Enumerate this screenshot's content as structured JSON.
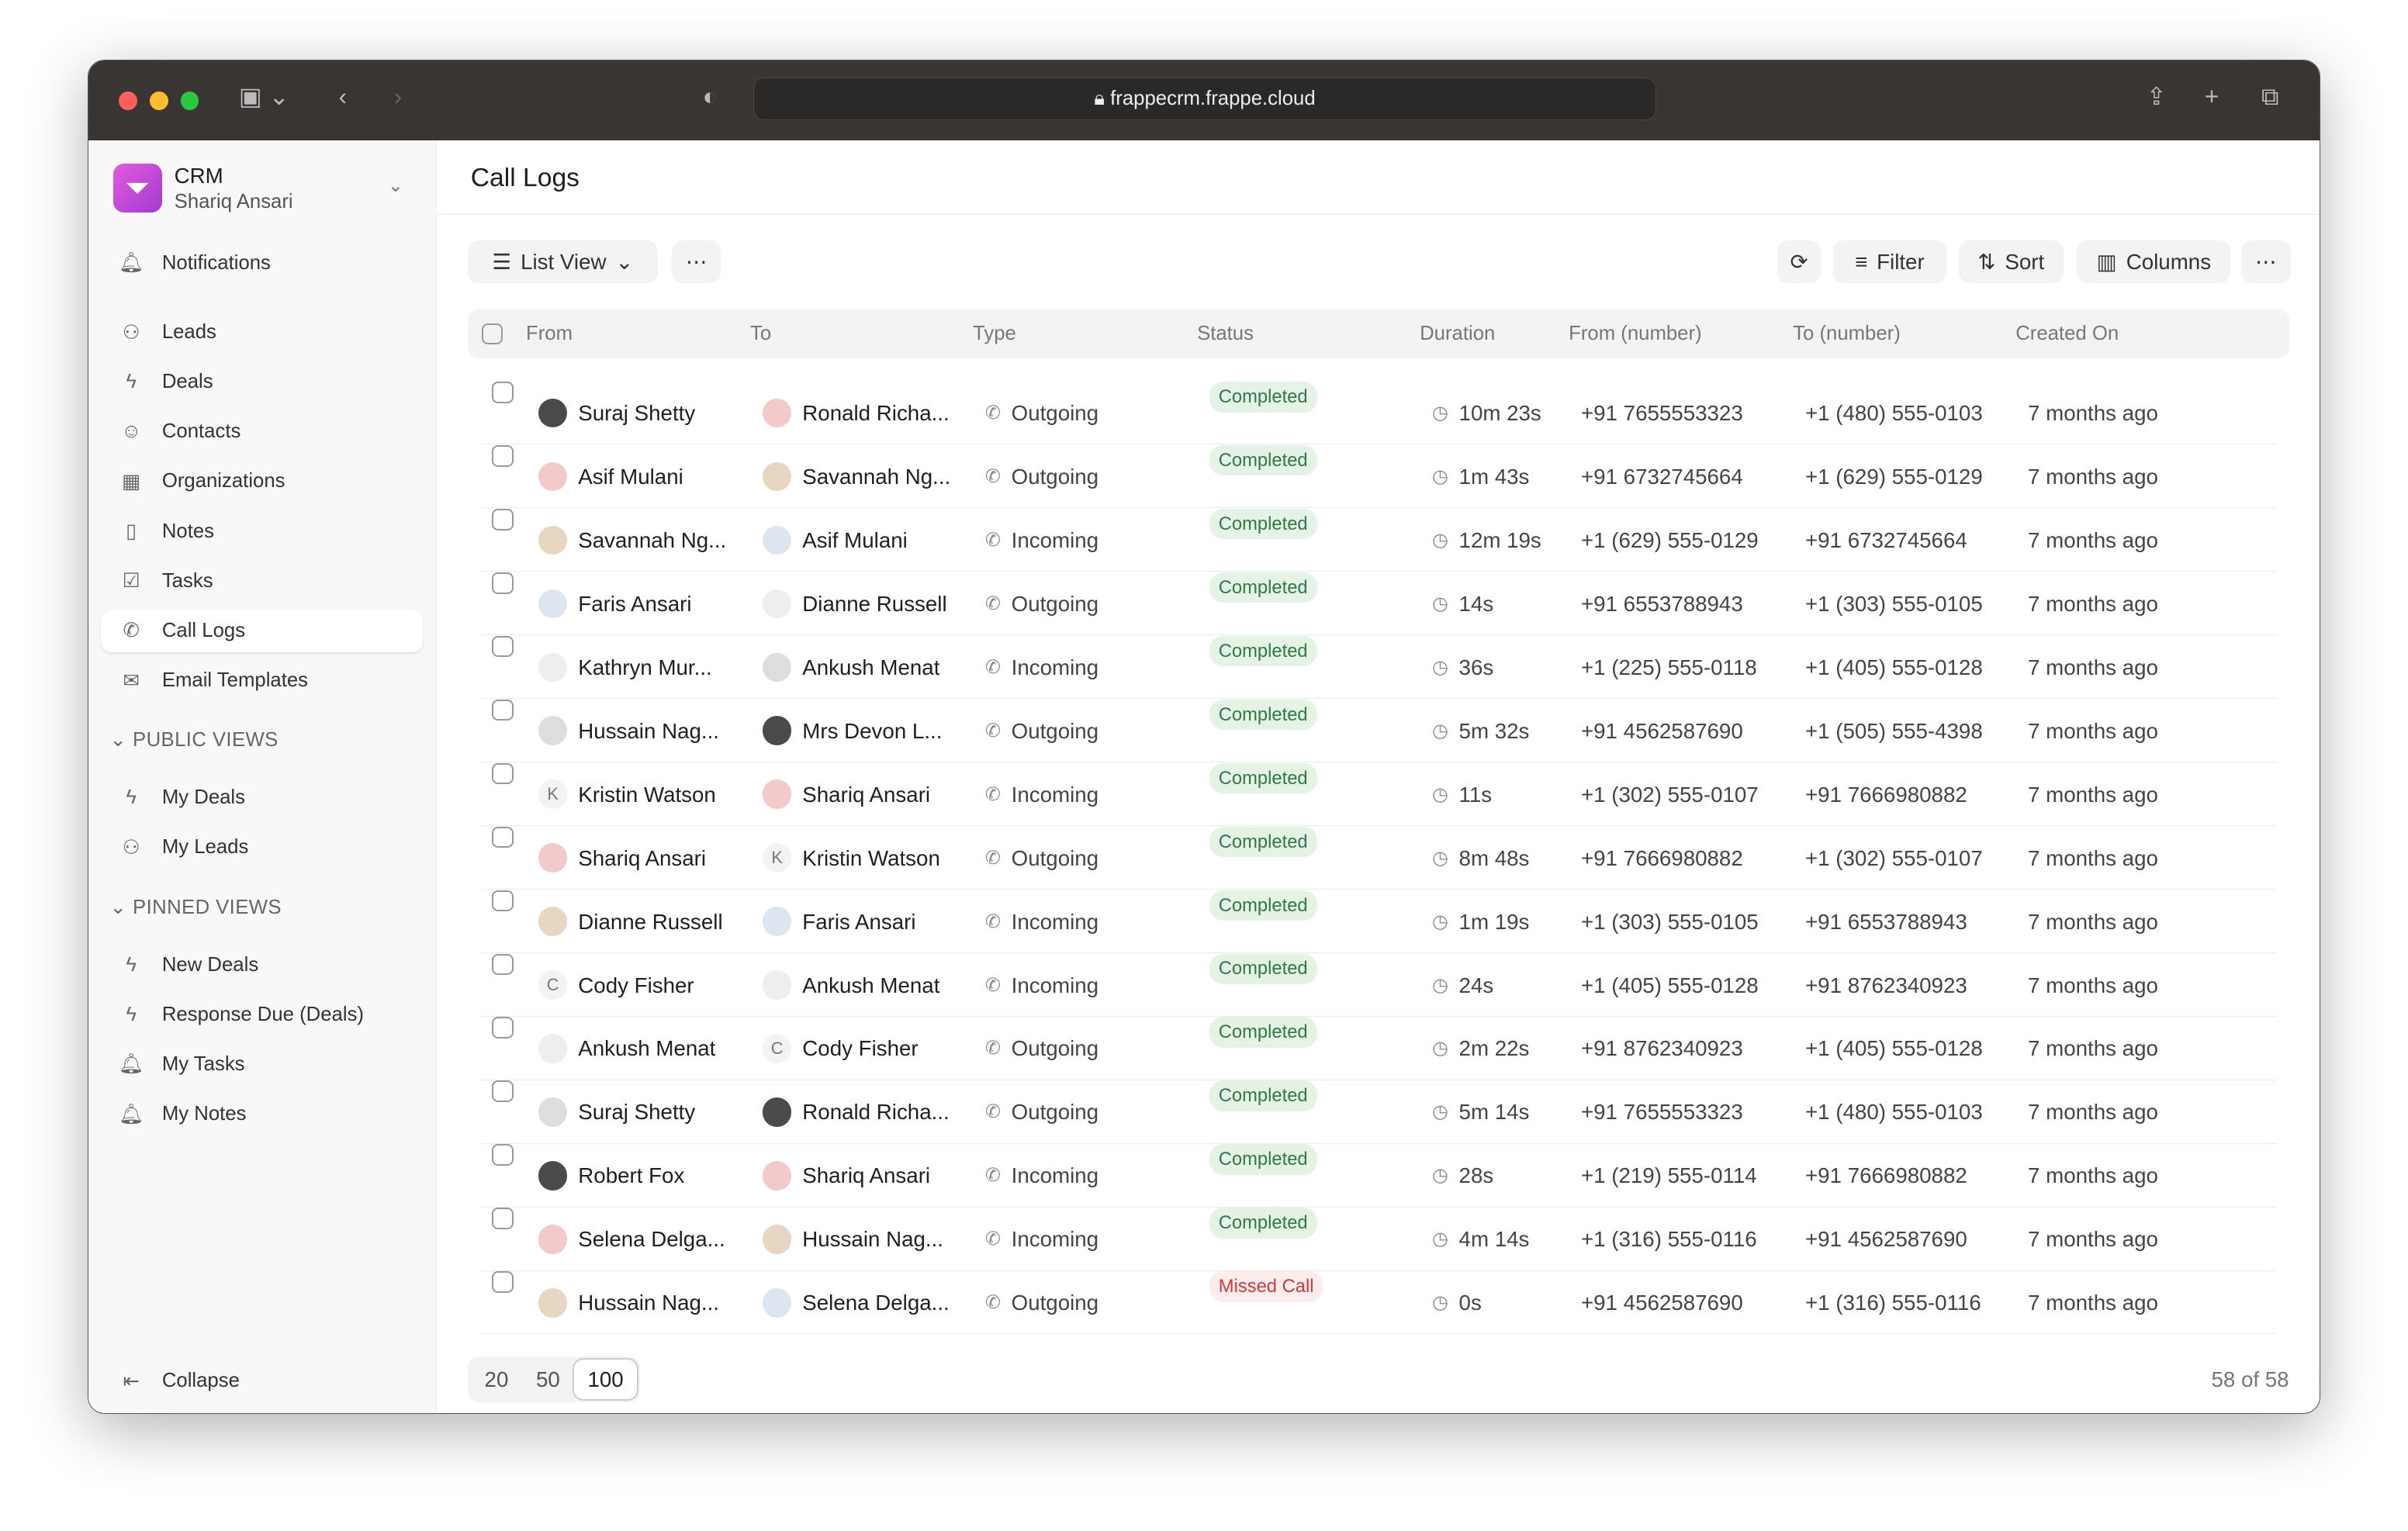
{
  "browser": {
    "url": "frappecrm.frappe.cloud"
  },
  "app": {
    "name": "CRM",
    "user": "Shariq Ansari",
    "page_title": "Call Logs"
  },
  "sidebar": {
    "notifications": "Notifications",
    "items": [
      {
        "label": "Leads",
        "icon": "users-icon"
      },
      {
        "label": "Deals",
        "icon": "bolt-icon"
      },
      {
        "label": "Contacts",
        "icon": "contact-icon"
      },
      {
        "label": "Organizations",
        "icon": "building-icon"
      },
      {
        "label": "Notes",
        "icon": "file-icon"
      },
      {
        "label": "Tasks",
        "icon": "check-icon"
      },
      {
        "label": "Call Logs",
        "icon": "phone-icon",
        "active": true
      },
      {
        "label": "Email Templates",
        "icon": "mail-icon"
      }
    ],
    "public_views_label": "PUBLIC VIEWS",
    "public_views": [
      {
        "label": "My Deals",
        "icon": "bolt-icon"
      },
      {
        "label": "My Leads",
        "icon": "users-icon"
      }
    ],
    "pinned_views_label": "PINNED VIEWS",
    "pinned_views": [
      {
        "label": "New Deals",
        "icon": "bolt-icon"
      },
      {
        "label": "Response Due (Deals)",
        "icon": "bolt-icon"
      },
      {
        "label": "My Tasks",
        "icon": "bell-icon"
      },
      {
        "label": "My Notes",
        "icon": "bell-icon"
      }
    ],
    "collapse": "Collapse"
  },
  "toolbar": {
    "view": "List View",
    "filter": "Filter",
    "sort": "Sort",
    "columns": "Columns"
  },
  "table": {
    "columns": [
      "From",
      "To",
      "Type",
      "Status",
      "Duration",
      "From (number)",
      "To (number)",
      "Created On"
    ],
    "rows": [
      [
        "Suraj Shetty",
        "Ronald Richa...",
        "Outgoing",
        "Completed",
        "10m 23s",
        "+91 7655553323",
        "+1 (480) 555-0103",
        "7 months ago"
      ],
      [
        "Asif Mulani",
        "Savannah Ng...",
        "Outgoing",
        "Completed",
        "1m 43s",
        "+91 6732745664",
        "+1 (629) 555-0129",
        "7 months ago"
      ],
      [
        "Savannah Ng...",
        "Asif Mulani",
        "Incoming",
        "Completed",
        "12m 19s",
        "+1 (629) 555-0129",
        "+91 6732745664",
        "7 months ago"
      ],
      [
        "Faris Ansari",
        "Dianne Russell",
        "Outgoing",
        "Completed",
        "14s",
        "+91 6553788943",
        "+1 (303) 555-0105",
        "7 months ago"
      ],
      [
        "Kathryn Mur...",
        "Ankush Menat",
        "Incoming",
        "Completed",
        "36s",
        "+1 (225) 555-0118",
        "+1 (405) 555-0128",
        "7 months ago"
      ],
      [
        "Hussain Nag...",
        "Mrs Devon L...",
        "Outgoing",
        "Completed",
        "5m 32s",
        "+91 4562587690",
        "+1 (505) 555-4398",
        "7 months ago"
      ],
      [
        "Kristin Watson",
        "Shariq Ansari",
        "Incoming",
        "Completed",
        "11s",
        "+1 (302) 555-0107",
        "+91 7666980882",
        "7 months ago"
      ],
      [
        "Shariq Ansari",
        "Kristin Watson",
        "Outgoing",
        "Completed",
        "8m 48s",
        "+91 7666980882",
        "+1 (302) 555-0107",
        "7 months ago"
      ],
      [
        "Dianne Russell",
        "Faris Ansari",
        "Incoming",
        "Completed",
        "1m 19s",
        "+1 (303) 555-0105",
        "+91 6553788943",
        "7 months ago"
      ],
      [
        "Cody Fisher",
        "Ankush Menat",
        "Incoming",
        "Completed",
        "24s",
        "+1 (405) 555-0128",
        "+91 8762340923",
        "7 months ago"
      ],
      [
        "Ankush Menat",
        "Cody Fisher",
        "Outgoing",
        "Completed",
        "2m 22s",
        "+91 8762340923",
        "+1 (405) 555-0128",
        "7 months ago"
      ],
      [
        "Suraj Shetty",
        "Ronald Richa...",
        "Outgoing",
        "Completed",
        "5m 14s",
        "+91 7655553323",
        "+1 (480) 555-0103",
        "7 months ago"
      ],
      [
        "Robert Fox",
        "Shariq Ansari",
        "Incoming",
        "Completed",
        "28s",
        "+1 (219) 555-0114",
        "+91 7666980882",
        "7 months ago"
      ],
      [
        "Selena Delga...",
        "Hussain Nag...",
        "Incoming",
        "Completed",
        "4m 14s",
        "+1 (316) 555-0116",
        "+91 4562587690",
        "7 months ago"
      ],
      [
        "Hussain Nag...",
        "Selena Delga...",
        "Outgoing",
        "Missed Call",
        "0s",
        "+91 4562587690",
        "+1 (316) 555-0116",
        "7 months ago"
      ]
    ]
  },
  "pagination": {
    "sizes": [
      "20",
      "50",
      "100"
    ],
    "selected": "100",
    "count": "58 of 58"
  },
  "colors": {
    "completed_bg": "#e4f3e6",
    "completed_fg": "#2f7a45",
    "missed_bg": "#fdecec",
    "missed_fg": "#d23b3b",
    "brand": "#c94fdc"
  }
}
